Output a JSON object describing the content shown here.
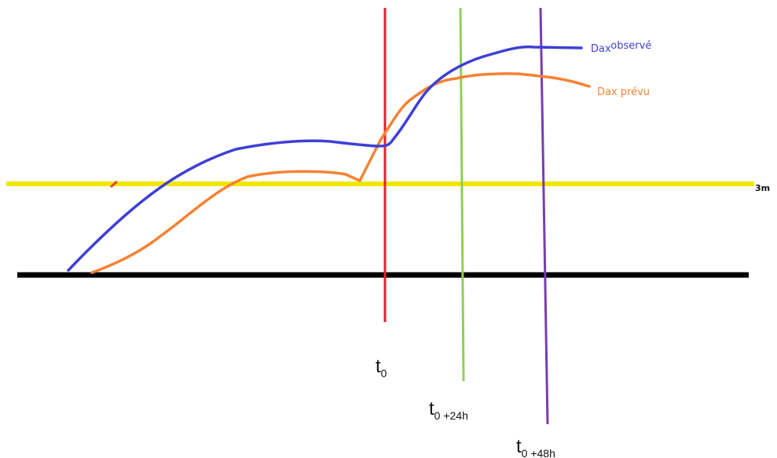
{
  "series": {
    "observed": {
      "label_main": "Dax",
      "label_super": "observé",
      "color": "#3f3fd6"
    },
    "forecast": {
      "label": "Dax prévu",
      "color": "#f58233"
    }
  },
  "threshold": {
    "label": "3m",
    "color": "#f2e600"
  },
  "baseline": {
    "color": "#000000"
  },
  "time_markers": [
    {
      "base": "t",
      "sub": "0",
      "color": "#e8202a"
    },
    {
      "base": "t",
      "sub": "0 +24h",
      "color": "#8ed05a"
    },
    {
      "base": "t",
      "sub": "0 +48h",
      "color": "#7a3cb0"
    }
  ]
}
